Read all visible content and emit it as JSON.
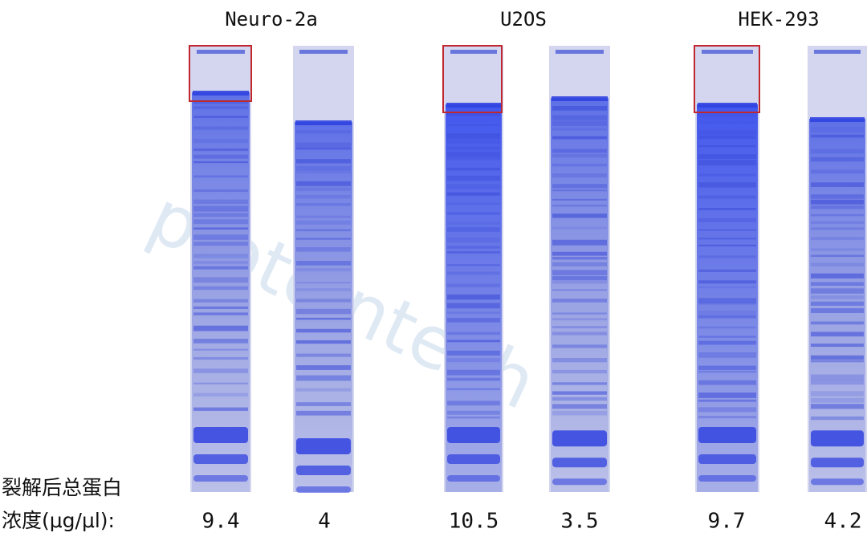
{
  "watermark": "proteintech",
  "groups": [
    {
      "name": "Neuro-2a",
      "lanes": [
        {
          "concentration": 9.4
        },
        {
          "concentration": 4
        }
      ]
    },
    {
      "name": "U2OS",
      "lanes": [
        {
          "concentration": 10.5
        },
        {
          "concentration": 3.5
        }
      ]
    },
    {
      "name": "HEK-293",
      "lanes": [
        {
          "concentration": 9.7
        },
        {
          "concentration": 4.2
        }
      ]
    }
  ],
  "row_label": [
    "裂解后总蛋白",
    "浓度(μg/μl):"
  ]
}
